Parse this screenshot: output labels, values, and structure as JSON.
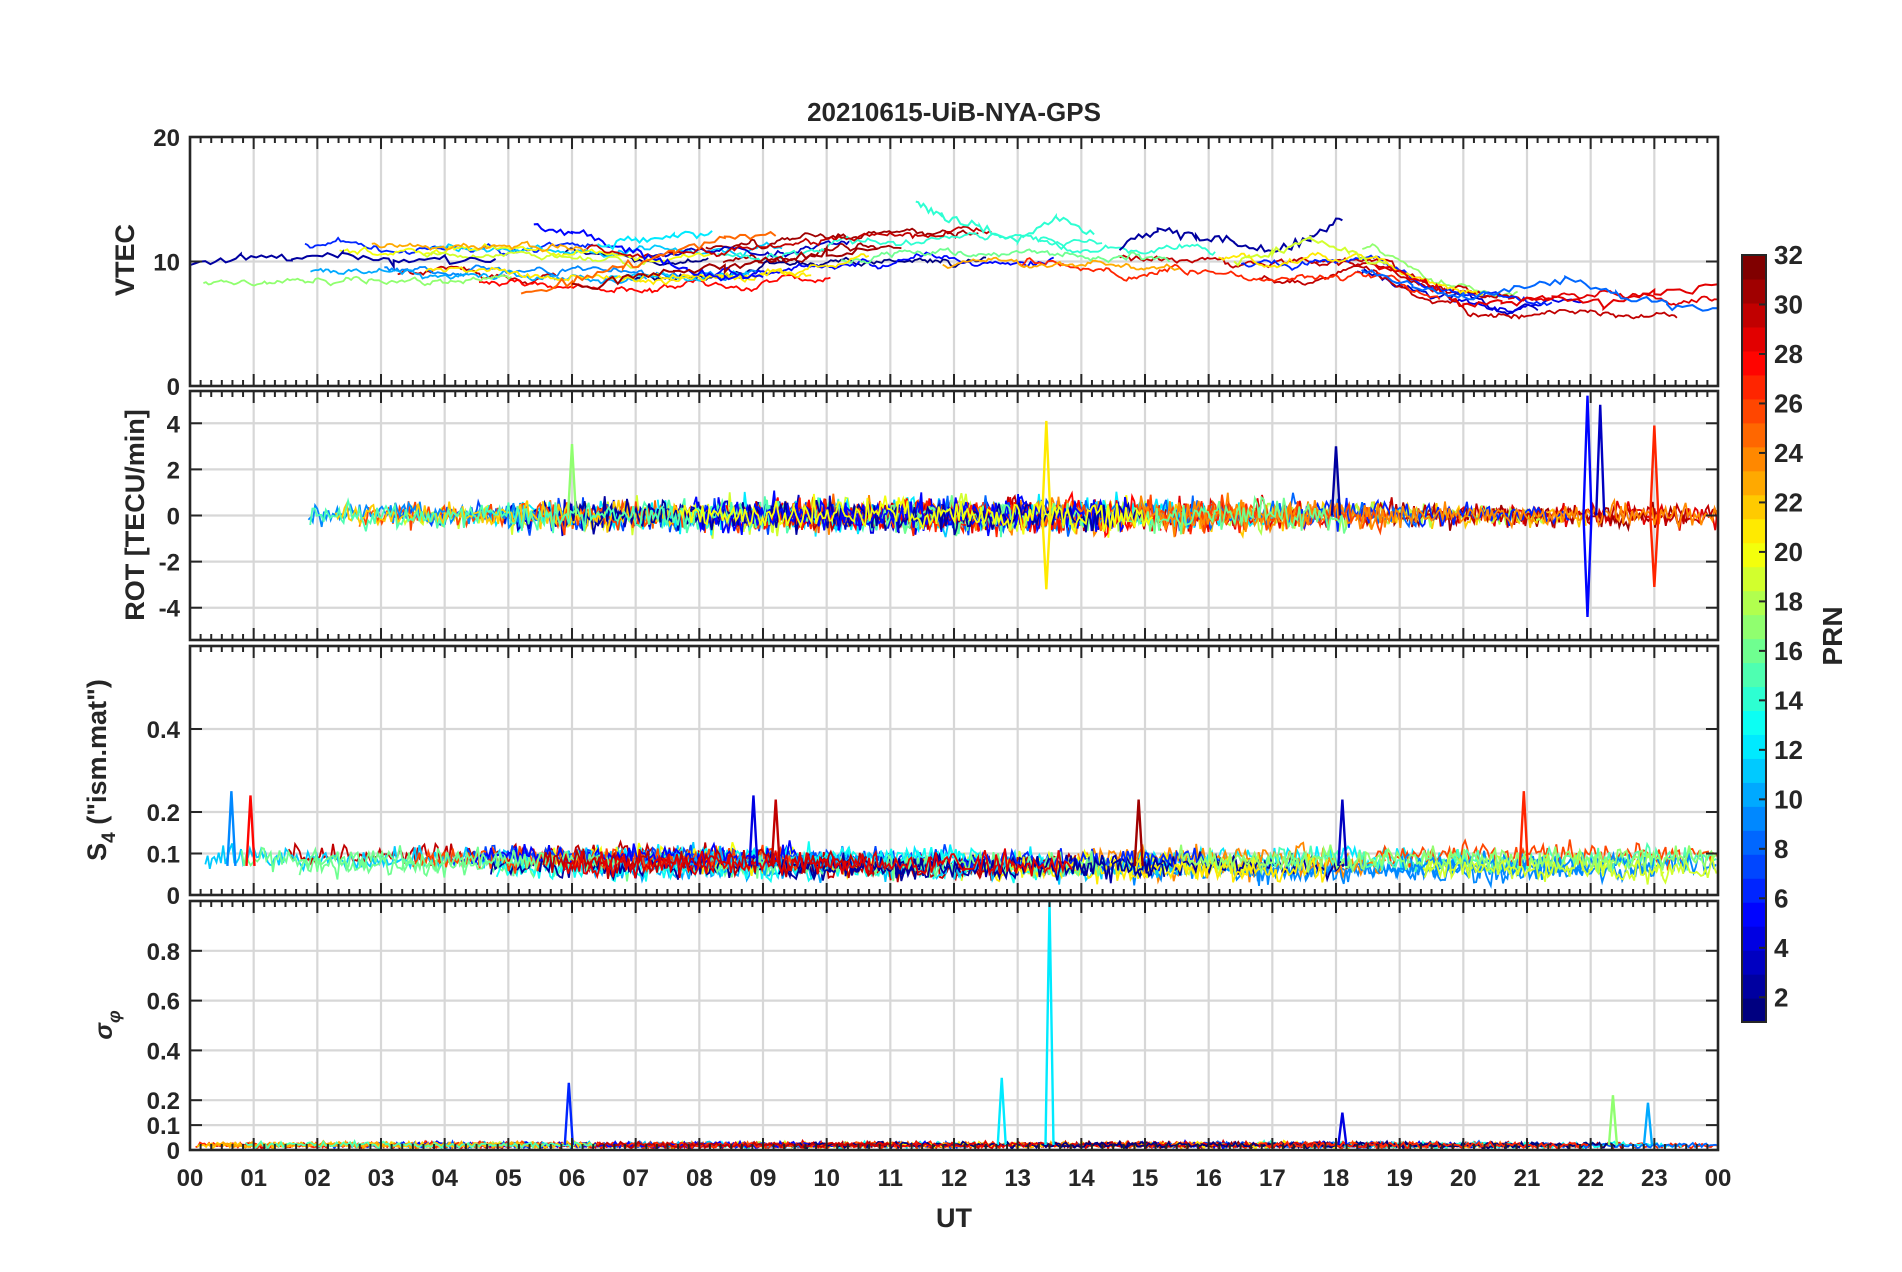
{
  "figure": {
    "title": "20210615-UiB-NYA-GPS",
    "xlabel": "UT",
    "x_ticks": [
      "00",
      "01",
      "02",
      "03",
      "04",
      "05",
      "06",
      "07",
      "08",
      "09",
      "10",
      "11",
      "12",
      "13",
      "14",
      "15",
      "16",
      "17",
      "18",
      "19",
      "20",
      "21",
      "22",
      "23",
      "00"
    ]
  },
  "colorbar": {
    "label": "PRN",
    "range": [
      1,
      32
    ],
    "ticks": [
      2,
      4,
      6,
      8,
      10,
      12,
      14,
      16,
      18,
      20,
      22,
      24,
      26,
      28,
      30,
      32
    ],
    "colormap": "jet",
    "levels": 32
  },
  "chart_data": [
    {
      "type": "line",
      "id": "vtec",
      "ylabel": "VTEC",
      "ylim": [
        0,
        20
      ],
      "yticks": [
        0,
        10,
        20
      ],
      "x_range_hours": [
        0,
        24
      ],
      "grid": true,
      "series_description": "one line per GPS satellite (PRN 1-32), colour-coded by PRN",
      "series": [
        {
          "prn": 2,
          "x": [
            0.0,
            0.8,
            1.6,
            2.4,
            3.2,
            4.0,
            4.8
          ],
          "y": [
            9.8,
            10.4,
            10.1,
            10.6,
            9.9,
            10.2,
            10.0
          ]
        },
        {
          "prn": 5,
          "x": [
            5.4,
            6.0,
            6.6,
            7.2,
            7.8,
            8.4,
            9.0
          ],
          "y": [
            12.9,
            12.4,
            11.5,
            10.4,
            9.3,
            8.7,
            8.9
          ]
        },
        {
          "prn": 12,
          "x": [
            6.4,
            7.0,
            7.6,
            8.2
          ],
          "y": [
            11.2,
            11.8,
            12.0,
            12.4
          ]
        },
        {
          "prn": 25,
          "x": [
            5.2,
            6.0,
            6.8,
            7.6,
            8.4,
            9.2
          ],
          "y": [
            7.2,
            8.4,
            9.6,
            10.8,
            11.8,
            12.1
          ]
        },
        {
          "prn": 31,
          "x": [
            6.0,
            6.8,
            7.6,
            8.4,
            9.2,
            10.0,
            10.8
          ],
          "y": [
            7.8,
            8.6,
            9.2,
            9.6,
            10.2,
            10.6,
            10.9
          ]
        },
        {
          "prn": 14,
          "x": [
            11.4,
            11.8,
            12.4,
            13.0,
            13.6,
            14.2
          ],
          "y": [
            15.0,
            13.6,
            12.8,
            11.6,
            13.5,
            12.2
          ]
        },
        {
          "prn": 2,
          "x": [
            14.6,
            15.2,
            15.8,
            16.4,
            17.0,
            17.6,
            18.1
          ],
          "y": [
            11.2,
            12.6,
            12.1,
            11.5,
            10.8,
            11.9,
            13.6
          ]
        },
        {
          "prn": 29,
          "x": [
            18.6,
            19.4,
            20.0,
            20.6,
            21.4,
            22.2,
            23.0,
            24.0
          ],
          "y": [
            9.8,
            8.4,
            6.4,
            6.8,
            7.2,
            6.6,
            7.4,
            8.2
          ]
        },
        {
          "prn": 8,
          "x": [
            18.4,
            19.2,
            20.0,
            20.8,
            21.6,
            22.4,
            23.2,
            24.0
          ],
          "y": [
            9.2,
            8.0,
            7.0,
            7.8,
            8.6,
            7.4,
            6.4,
            6.2
          ]
        },
        {
          "prn": 19,
          "x": [
            16.4,
            17.0,
            17.6,
            18.2,
            18.8
          ],
          "y": [
            9.8,
            10.6,
            11.8,
            10.8,
            9.6
          ]
        }
      ]
    },
    {
      "type": "line",
      "id": "rot",
      "ylabel": "ROT [TECU/min]",
      "ylim": [
        -5.4,
        5.4
      ],
      "yticks": [
        -4,
        -2,
        0,
        2,
        4
      ],
      "x_range_hours": [
        0,
        24
      ],
      "grid": true,
      "series_description": "rate of TEC per satellite, mostly within ±1 TECU/min with spikes",
      "spikes": [
        {
          "prn": 17,
          "x": 6.0,
          "y": 3.1
        },
        {
          "prn": 21,
          "x": 13.45,
          "y": 4.1
        },
        {
          "prn": 21,
          "x": 13.45,
          "y": -3.2
        },
        {
          "prn": 2,
          "x": 18.0,
          "y": 3.0
        },
        {
          "prn": 5,
          "x": 21.95,
          "y": 5.2
        },
        {
          "prn": 5,
          "x": 21.95,
          "y": -4.4
        },
        {
          "prn": 3,
          "x": 22.15,
          "y": 4.8
        },
        {
          "prn": 27,
          "x": 23.0,
          "y": 3.9
        },
        {
          "prn": 27,
          "x": 23.0,
          "y": -3.1
        }
      ]
    },
    {
      "type": "line",
      "id": "s4",
      "ylabel": "S4 (\"ism.mat\")",
      "ylabel_main": "S",
      "ylabel_sub": "4",
      "ylabel_rest": " (\"ism.mat\")",
      "ylim": [
        0,
        0.6
      ],
      "yticks": [
        0,
        0.1,
        0.2,
        0.4
      ],
      "x_range_hours": [
        0,
        24
      ],
      "grid": true,
      "series_description": "amplitude scintillation index per satellite, baseline ~0.05-0.1",
      "peaks": [
        {
          "prn": 9,
          "x": 0.65,
          "y": 0.25
        },
        {
          "prn": 28,
          "x": 0.95,
          "y": 0.24
        },
        {
          "prn": 4,
          "x": 8.85,
          "y": 0.24
        },
        {
          "prn": 30,
          "x": 9.2,
          "y": 0.23
        },
        {
          "prn": 31,
          "x": 14.9,
          "y": 0.23
        },
        {
          "prn": 3,
          "x": 18.1,
          "y": 0.23
        },
        {
          "prn": 27,
          "x": 20.95,
          "y": 0.25
        }
      ]
    },
    {
      "type": "line",
      "id": "sigma_phi",
      "ylabel": "σφ",
      "ylabel_main": "σ",
      "ylabel_sub": "φ",
      "ylim": [
        0,
        1.0
      ],
      "yticks": [
        0,
        0.1,
        0.2,
        0.4,
        0.6,
        0.8
      ],
      "x_range_hours": [
        0,
        24
      ],
      "grid": true,
      "series_description": "phase scintillation index per satellite, mostly below 0.05",
      "peaks": [
        {
          "prn": 6,
          "x": 5.95,
          "y": 0.27
        },
        {
          "prn": 12,
          "x": 12.75,
          "y": 0.29
        },
        {
          "prn": 12,
          "x": 13.5,
          "y": 1.0
        },
        {
          "prn": 4,
          "x": 18.1,
          "y": 0.15
        },
        {
          "prn": 17,
          "x": 22.35,
          "y": 0.22
        },
        {
          "prn": 10,
          "x": 22.9,
          "y": 0.19
        }
      ]
    }
  ]
}
